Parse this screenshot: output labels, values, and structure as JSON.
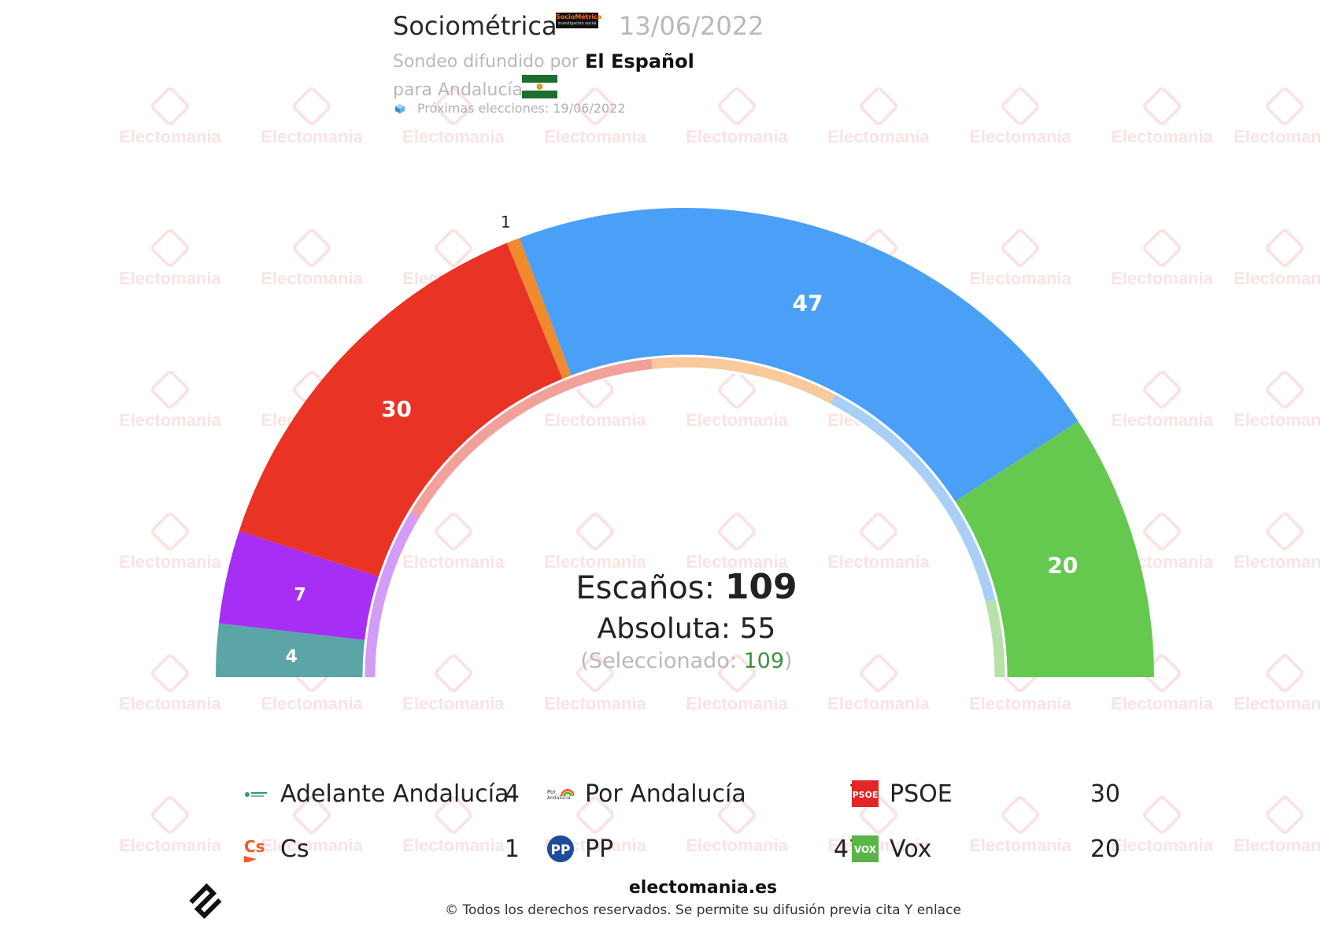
{
  "header": {
    "pollster": "Sociométrica",
    "pollster_logo_text": "SocioMétrica",
    "pollster_logo_sub": "investigación social",
    "date": "13/06/2022",
    "disseminated_by_label": "Sondeo difundido por",
    "media": "El Español",
    "region_label": "para Andalucía",
    "next_election_label": "Próximas elecciones: 19/06/2022"
  },
  "center": {
    "seats_label": "Escaños:",
    "seats_total": "109",
    "absolute_label": "Absoluta: 55",
    "selected_prefix": "(Seleccionado: ",
    "selected_value": "109",
    "selected_suffix": ")"
  },
  "legend": [
    {
      "name": "Adelante Andalucía",
      "value": "4",
      "icon": "adelante-logo"
    },
    {
      "name": "Por Andalucía",
      "value": "7",
      "icon": "por-andalucia-logo"
    },
    {
      "name": "PSOE",
      "value": "30",
      "icon": "psoe-logo"
    },
    {
      "name": "Cs",
      "value": "1",
      "icon": "cs-logo"
    },
    {
      "name": "PP",
      "value": "47",
      "icon": "pp-logo"
    },
    {
      "name": "Vox",
      "value": "20",
      "icon": "vox-logo"
    }
  ],
  "footer": {
    "site": "electomania.es",
    "copyright": "© Todos los derechos reservados. Se permite su difusión previa cita Y enlace"
  },
  "watermark": "Electomania",
  "chart_data": {
    "type": "parliament-semicircle",
    "total_seats": 109,
    "majority": 55,
    "series": [
      {
        "name": "Adelante Andalucía",
        "value": 4,
        "color": "#5ba5a7"
      },
      {
        "name": "Por Andalucía",
        "value": 7,
        "color": "#a72ff5"
      },
      {
        "name": "PSOE",
        "value": 30,
        "color": "#e83325"
      },
      {
        "name": "Cs",
        "value": 1,
        "color": "#f08a2c"
      },
      {
        "name": "PP",
        "value": 47,
        "color": "#4aa0f7"
      },
      {
        "name": "Vox",
        "value": 20,
        "color": "#66c94f"
      }
    ],
    "inner_ring_colors": [
      "#d39cf6",
      "#f2a09a",
      "#f7c99b",
      "#a9cff7",
      "#b6e1a8"
    ]
  }
}
